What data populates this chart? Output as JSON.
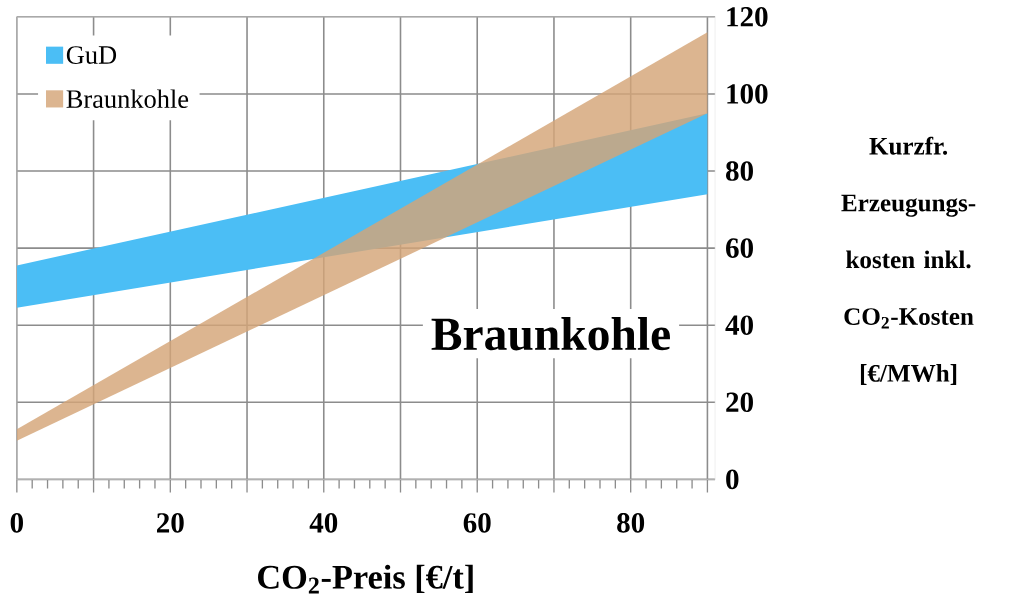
{
  "chart_data": {
    "type": "area",
    "x": [
      0,
      90
    ],
    "series": [
      {
        "name": "GuD",
        "color": "#4bbef5",
        "values": [
          null,
          null
        ],
        "lower": [
          44.5,
          74
        ],
        "upper": [
          55.5,
          95
        ]
      },
      {
        "name": "Braunkohle",
        "color": "#d4a577",
        "values": [
          null,
          null
        ],
        "lower": [
          10,
          95
        ],
        "upper": [
          13,
          116
        ]
      }
    ],
    "xlim": [
      0,
      91
    ],
    "ylim": [
      0,
      120
    ],
    "xticks": [
      0,
      {
        "value": 10,
        "label": null
      },
      20,
      {
        "value": 30,
        "label": null
      },
      40,
      {
        "value": 50,
        "label": null
      },
      60,
      {
        "value": 70,
        "label": null
      },
      80,
      {
        "value": 90,
        "label": null
      }
    ],
    "yticks": [
      0,
      20,
      40,
      60,
      80,
      100,
      120
    ],
    "xlabel": "CO$_{2}$-Preis [€/t]",
    "ylabel": "Kurzfr. Erzeugungs-kosten inkl. CO$_{2}$-Kosten [€/MWh]",
    "annotations": [
      "Braunkohle"
    ],
    "grid": true,
    "legend": "top left"
  }
}
